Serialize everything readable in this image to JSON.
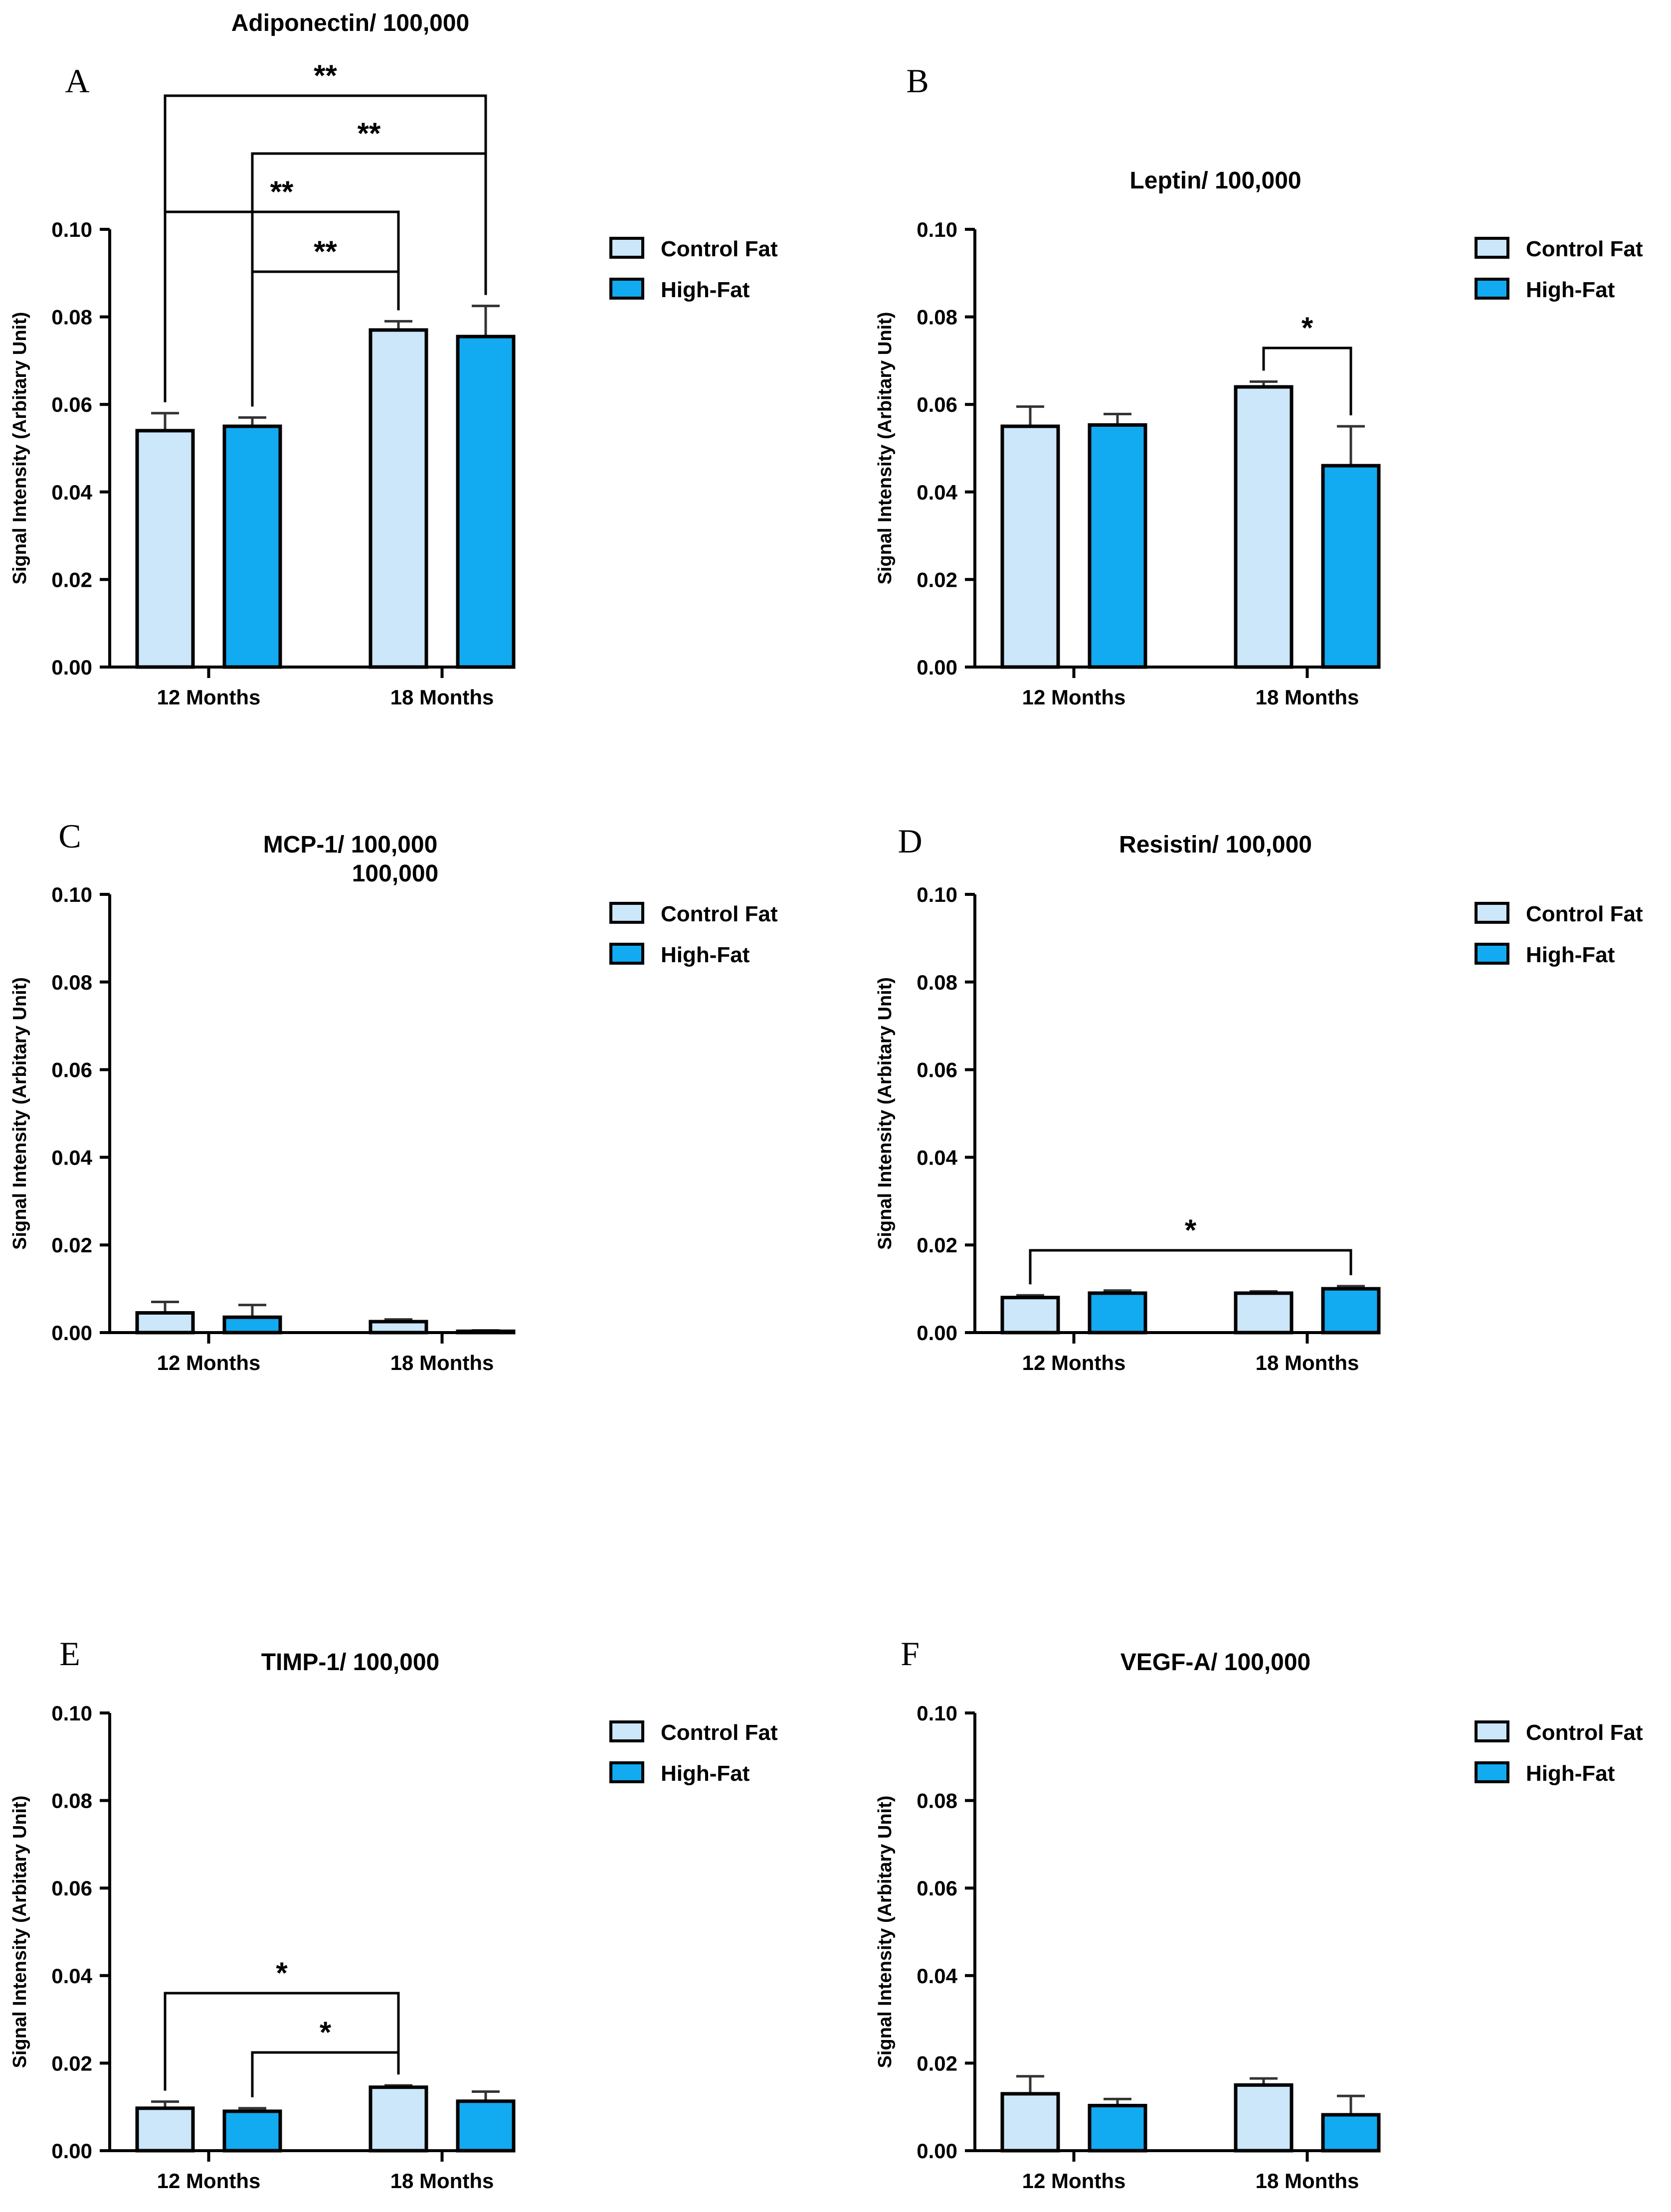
{
  "colors": {
    "control": "#cce6fa",
    "highfat": "#12aaf0",
    "axis": "#000000",
    "error": "#555555"
  },
  "chart_data": [
    {
      "panel": "A",
      "type": "bar",
      "title": "Adiponectin/ 100,000",
      "ylabel": "Signal Intensity (Arbitary Unit)",
      "xlabel": "",
      "ylim": [
        0,
        0.1
      ],
      "yticks": [
        "0.00",
        "0.02",
        "0.04",
        "0.06",
        "0.08",
        "0.10"
      ],
      "categories": [
        "12 Months",
        "18 Months"
      ],
      "series": [
        {
          "name": "Control Fat",
          "values": [
            0.054,
            0.077
          ],
          "errors": [
            0.004,
            0.002
          ]
        },
        {
          "name": "High-Fat",
          "values": [
            0.055,
            0.0755
          ],
          "errors": [
            0.002,
            0.007
          ]
        }
      ],
      "legend": [
        "Control Fat",
        "High-Fat"
      ],
      "legend_position": "right",
      "significance": [
        {
          "from": [
            0,
            0
          ],
          "to": [
            1,
            1
          ],
          "label": "**"
        },
        {
          "from": [
            0,
            1
          ],
          "to": [
            1,
            1
          ],
          "label": "**"
        },
        {
          "from": [
            0,
            0
          ],
          "to": [
            1,
            0
          ],
          "label": "**"
        },
        {
          "from": [
            0,
            1
          ],
          "to": [
            1,
            0
          ],
          "label": "**"
        }
      ]
    },
    {
      "panel": "B",
      "type": "bar",
      "title": "Leptin/ 100,000",
      "ylabel": "Signal Intensity (Arbitary Unit)",
      "xlabel": "",
      "ylim": [
        0,
        0.1
      ],
      "yticks": [
        "0.00",
        "0.02",
        "0.04",
        "0.06",
        "0.08",
        "0.10"
      ],
      "categories": [
        "12 Months",
        "18 Months"
      ],
      "series": [
        {
          "name": "Control Fat",
          "values": [
            0.055,
            0.064
          ],
          "errors": [
            0.0045,
            0.0012
          ]
        },
        {
          "name": "High-Fat",
          "values": [
            0.0553,
            0.046
          ],
          "errors": [
            0.0025,
            0.009
          ]
        }
      ],
      "legend": [
        "Control Fat",
        "High-Fat"
      ],
      "legend_position": "right",
      "significance": [
        {
          "from": [
            1,
            0
          ],
          "to": [
            1,
            1
          ],
          "label": "*"
        }
      ]
    },
    {
      "panel": "C",
      "type": "bar",
      "title": "MCP-1/ 100,000",
      "subtitle": "100,000",
      "ylabel": "Signal Intensity (Arbitary Unit)",
      "xlabel": "",
      "ylim": [
        0,
        0.1
      ],
      "yticks": [
        "0.00",
        "0.02",
        "0.04",
        "0.06",
        "0.08",
        "0.10"
      ],
      "categories": [
        "12 Months",
        "18 Months"
      ],
      "series": [
        {
          "name": "Control Fat",
          "values": [
            0.0045,
            0.0025
          ],
          "errors": [
            0.0025,
            0.0005
          ]
        },
        {
          "name": "High-Fat",
          "values": [
            0.0035,
            0.0003
          ],
          "errors": [
            0.0028,
            0.0002
          ]
        }
      ],
      "legend": [
        "Control Fat",
        "High-Fat"
      ],
      "legend_position": "right",
      "significance": []
    },
    {
      "panel": "D",
      "type": "bar",
      "title": "Resistin/ 100,000",
      "ylabel": "Signal Intensity (Arbitary Unit)",
      "xlabel": "",
      "ylim": [
        0,
        0.1
      ],
      "yticks": [
        "0.00",
        "0.02",
        "0.04",
        "0.06",
        "0.08",
        "0.10"
      ],
      "categories": [
        "12 Months",
        "18 Months"
      ],
      "series": [
        {
          "name": "Control Fat",
          "values": [
            0.008,
            0.009
          ],
          "errors": [
            0.0005,
            0.0004
          ]
        },
        {
          "name": "High-Fat",
          "values": [
            0.009,
            0.01
          ],
          "errors": [
            0.0006,
            0.0006
          ]
        }
      ],
      "legend": [
        "Control Fat",
        "High-Fat"
      ],
      "legend_position": "right",
      "significance": [
        {
          "from": [
            0,
            0
          ],
          "to": [
            1,
            1
          ],
          "label": "*"
        }
      ]
    },
    {
      "panel": "E",
      "type": "bar",
      "title": "TIMP-1/ 100,000",
      "ylabel": "Signal Intensity (Arbitary Unit)",
      "xlabel": "",
      "ylim": [
        0,
        0.1
      ],
      "yticks": [
        "0.00",
        "0.02",
        "0.04",
        "0.06",
        "0.08",
        "0.10"
      ],
      "categories": [
        "12 Months",
        "18 Months"
      ],
      "series": [
        {
          "name": "Control Fat",
          "values": [
            0.0097,
            0.0145
          ],
          "errors": [
            0.0015,
            0.0004
          ]
        },
        {
          "name": "High-Fat",
          "values": [
            0.009,
            0.0113
          ],
          "errors": [
            0.0007,
            0.0022
          ]
        }
      ],
      "legend": [
        "Control Fat",
        "High-Fat"
      ],
      "legend_position": "right",
      "significance": [
        {
          "from": [
            0,
            0
          ],
          "to": [
            1,
            0
          ],
          "label": "*"
        },
        {
          "from": [
            0,
            1
          ],
          "to": [
            1,
            0
          ],
          "label": "*"
        }
      ]
    },
    {
      "panel": "F",
      "type": "bar",
      "title": "VEGF-A/ 100,000",
      "ylabel": "Signal Intensity (Arbitary Unit)",
      "xlabel": "",
      "ylim": [
        0,
        0.1
      ],
      "yticks": [
        "0.00",
        "0.02",
        "0.04",
        "0.06",
        "0.08",
        "0.10"
      ],
      "categories": [
        "12 Months",
        "18 Months"
      ],
      "series": [
        {
          "name": "Control Fat",
          "values": [
            0.013,
            0.015
          ],
          "errors": [
            0.004,
            0.0015
          ]
        },
        {
          "name": "High-Fat",
          "values": [
            0.0103,
            0.0082
          ],
          "errors": [
            0.0015,
            0.0043
          ]
        }
      ],
      "legend": [
        "Control Fat",
        "High-Fat"
      ],
      "legend_position": "right",
      "significance": []
    }
  ]
}
